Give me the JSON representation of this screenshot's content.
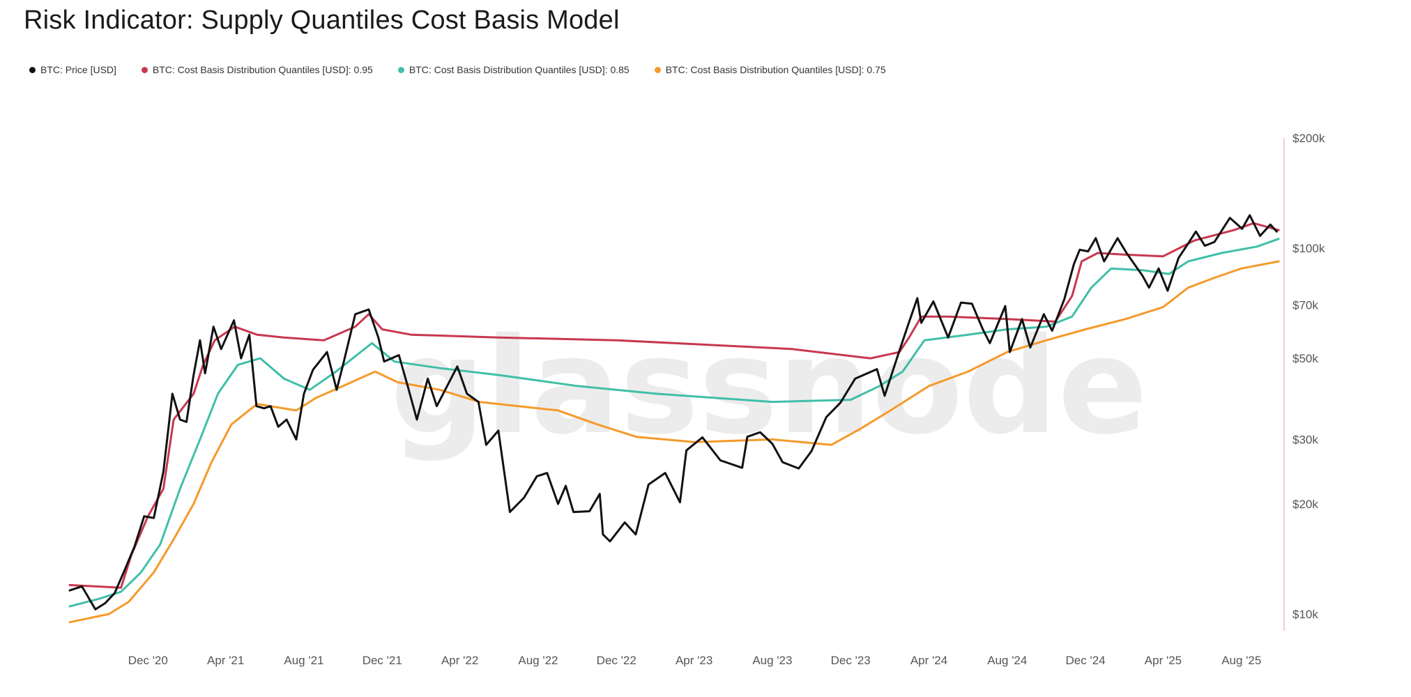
{
  "title": "Risk Indicator: Supply Quantiles Cost Basis Model",
  "watermark": "glassnode",
  "colors": {
    "price": "#111111",
    "q95": "#c8374f",
    "q85": "#3fbfa8",
    "q75": "#f59a2a",
    "axis": "#f2b8c2"
  },
  "legend": [
    {
      "label": "BTC: Price [USD]",
      "color": "#111111"
    },
    {
      "label": "BTC: Cost Basis Distribution Quantiles [USD]: 0.95",
      "color": "#c8374f"
    },
    {
      "label": "BTC: Cost Basis Distribution Quantiles [USD]: 0.85",
      "color": "#3fbfa8"
    },
    {
      "label": "BTC: Cost Basis Distribution Quantiles [USD]: 0.75",
      "color": "#f59a2a"
    }
  ],
  "chart_data": {
    "type": "line",
    "title": "Risk Indicator: Supply Quantiles Cost Basis Model",
    "y_scale": "log",
    "ylim": [
      9000,
      200000
    ],
    "xlim": [
      "2020-08-01",
      "2025-09-30"
    ],
    "x_ticks": [
      {
        "label": "Dec '20",
        "date": "2020-12-01"
      },
      {
        "label": "Apr '21",
        "date": "2021-04-01"
      },
      {
        "label": "Aug '21",
        "date": "2021-08-01"
      },
      {
        "label": "Dec '21",
        "date": "2021-12-01"
      },
      {
        "label": "Apr '22",
        "date": "2022-04-01"
      },
      {
        "label": "Aug '22",
        "date": "2022-08-01"
      },
      {
        "label": "Dec '22",
        "date": "2022-12-01"
      },
      {
        "label": "Apr '23",
        "date": "2023-04-01"
      },
      {
        "label": "Aug '23",
        "date": "2023-08-01"
      },
      {
        "label": "Dec '23",
        "date": "2023-12-01"
      },
      {
        "label": "Apr '24",
        "date": "2024-04-01"
      },
      {
        "label": "Aug '24",
        "date": "2024-08-01"
      },
      {
        "label": "Dec '24",
        "date": "2024-12-01"
      },
      {
        "label": "Apr '25",
        "date": "2025-04-01"
      },
      {
        "label": "Aug '25",
        "date": "2025-08-01"
      }
    ],
    "y_ticks": [
      {
        "label": "$200k",
        "value": 200000
      },
      {
        "label": "$100k",
        "value": 100000
      },
      {
        "label": "$70k",
        "value": 70000
      },
      {
        "label": "$50k",
        "value": 50000
      },
      {
        "label": "$30k",
        "value": 30000
      },
      {
        "label": "$20k",
        "value": 20000
      },
      {
        "label": "$10k",
        "value": 10000
      }
    ],
    "series": [
      {
        "name": "BTC: Price [USD]",
        "key": "price",
        "points": [
          [
            "2020-08-01",
            11600
          ],
          [
            "2020-08-20",
            11900
          ],
          [
            "2020-09-10",
            10300
          ],
          [
            "2020-09-25",
            10700
          ],
          [
            "2020-10-10",
            11400
          ],
          [
            "2020-10-25",
            13100
          ],
          [
            "2020-11-10",
            15300
          ],
          [
            "2020-11-25",
            18500
          ],
          [
            "2020-12-10",
            18300
          ],
          [
            "2020-12-25",
            24500
          ],
          [
            "2021-01-08",
            40000
          ],
          [
            "2021-01-20",
            34000
          ],
          [
            "2021-01-30",
            33500
          ],
          [
            "2021-02-10",
            45000
          ],
          [
            "2021-02-20",
            56000
          ],
          [
            "2021-02-28",
            45500
          ],
          [
            "2021-03-13",
            61000
          ],
          [
            "2021-03-25",
            53000
          ],
          [
            "2021-04-14",
            63500
          ],
          [
            "2021-04-25",
            50000
          ],
          [
            "2021-05-08",
            58000
          ],
          [
            "2021-05-19",
            37000
          ],
          [
            "2021-05-31",
            36500
          ],
          [
            "2021-06-10",
            37000
          ],
          [
            "2021-06-22",
            32500
          ],
          [
            "2021-07-05",
            34000
          ],
          [
            "2021-07-20",
            30000
          ],
          [
            "2021-08-01",
            40000
          ],
          [
            "2021-08-15",
            46500
          ],
          [
            "2021-09-06",
            52000
          ],
          [
            "2021-09-21",
            41000
          ],
          [
            "2021-10-01",
            48000
          ],
          [
            "2021-10-20",
            66000
          ],
          [
            "2021-11-10",
            68000
          ],
          [
            "2021-11-25",
            57000
          ],
          [
            "2021-12-04",
            49000
          ],
          [
            "2021-12-27",
            51000
          ],
          [
            "2022-01-10",
            41800
          ],
          [
            "2022-01-24",
            34000
          ],
          [
            "2022-02-10",
            44000
          ],
          [
            "2022-02-24",
            37000
          ],
          [
            "2022-03-28",
            47500
          ],
          [
            "2022-04-12",
            40000
          ],
          [
            "2022-04-30",
            38000
          ],
          [
            "2022-05-12",
            29000
          ],
          [
            "2022-05-31",
            31700
          ],
          [
            "2022-06-18",
            19000
          ],
          [
            "2022-07-10",
            20800
          ],
          [
            "2022-07-30",
            23800
          ],
          [
            "2022-08-15",
            24300
          ],
          [
            "2022-09-01",
            20000
          ],
          [
            "2022-09-13",
            22400
          ],
          [
            "2022-09-25",
            19000
          ],
          [
            "2022-10-20",
            19100
          ],
          [
            "2022-11-05",
            21300
          ],
          [
            "2022-11-10",
            16500
          ],
          [
            "2022-11-21",
            15800
          ],
          [
            "2022-12-14",
            17800
          ],
          [
            "2022-12-31",
            16500
          ],
          [
            "2023-01-20",
            22600
          ],
          [
            "2023-02-15",
            24300
          ],
          [
            "2023-03-10",
            20200
          ],
          [
            "2023-03-20",
            28000
          ],
          [
            "2023-04-14",
            30400
          ],
          [
            "2023-05-12",
            26300
          ],
          [
            "2023-06-15",
            25100
          ],
          [
            "2023-06-23",
            30500
          ],
          [
            "2023-07-13",
            31400
          ],
          [
            "2023-08-01",
            29200
          ],
          [
            "2023-08-17",
            26000
          ],
          [
            "2023-09-11",
            25000
          ],
          [
            "2023-10-01",
            27900
          ],
          [
            "2023-10-24",
            34500
          ],
          [
            "2023-11-15",
            37800
          ],
          [
            "2023-12-08",
            44000
          ],
          [
            "2024-01-11",
            46700
          ],
          [
            "2024-01-23",
            39500
          ],
          [
            "2024-02-14",
            51800
          ],
          [
            "2024-02-29",
            62000
          ],
          [
            "2024-03-14",
            73000
          ],
          [
            "2024-03-20",
            62500
          ],
          [
            "2024-04-08",
            71500
          ],
          [
            "2024-05-01",
            57000
          ],
          [
            "2024-05-21",
            71000
          ],
          [
            "2024-06-07",
            70500
          ],
          [
            "2024-06-24",
            60000
          ],
          [
            "2024-07-05",
            55000
          ],
          [
            "2024-07-29",
            69500
          ],
          [
            "2024-08-05",
            52000
          ],
          [
            "2024-08-24",
            64000
          ],
          [
            "2024-09-06",
            53500
          ],
          [
            "2024-09-27",
            66000
          ],
          [
            "2024-10-10",
            59500
          ],
          [
            "2024-10-29",
            72500
          ],
          [
            "2024-11-13",
            90500
          ],
          [
            "2024-11-22",
            99000
          ],
          [
            "2024-12-05",
            98000
          ],
          [
            "2024-12-17",
            106500
          ],
          [
            "2024-12-30",
            92000
          ],
          [
            "2025-01-20",
            106500
          ],
          [
            "2025-02-03",
            97000
          ],
          [
            "2025-02-28",
            84000
          ],
          [
            "2025-03-10",
            78000
          ],
          [
            "2025-03-25",
            88000
          ],
          [
            "2025-04-08",
            76500
          ],
          [
            "2025-04-25",
            94000
          ],
          [
            "2025-05-10",
            103000
          ],
          [
            "2025-05-22",
            111000
          ],
          [
            "2025-06-05",
            101500
          ],
          [
            "2025-06-20",
            104000
          ],
          [
            "2025-07-14",
            121000
          ],
          [
            "2025-08-02",
            113000
          ],
          [
            "2025-08-14",
            123000
          ],
          [
            "2025-08-30",
            108000
          ],
          [
            "2025-09-15",
            116000
          ],
          [
            "2025-09-25",
            111000
          ]
        ]
      },
      {
        "name": "BTC: Cost Basis Distribution Quantiles [USD]: 0.95",
        "key": "q95",
        "points": [
          [
            "2020-08-01",
            12000
          ],
          [
            "2020-10-20",
            11800
          ],
          [
            "2020-11-05",
            14500
          ],
          [
            "2020-12-01",
            18500
          ],
          [
            "2020-12-25",
            22000
          ],
          [
            "2021-01-10",
            34000
          ],
          [
            "2021-02-10",
            40000
          ],
          [
            "2021-02-25",
            48000
          ],
          [
            "2021-03-15",
            56000
          ],
          [
            "2021-04-15",
            61000
          ],
          [
            "2021-05-20",
            58000
          ],
          [
            "2021-07-01",
            57000
          ],
          [
            "2021-09-01",
            56000
          ],
          [
            "2021-10-20",
            61000
          ],
          [
            "2021-11-10",
            66000
          ],
          [
            "2021-12-01",
            60000
          ],
          [
            "2022-01-15",
            58000
          ],
          [
            "2022-06-01",
            57000
          ],
          [
            "2022-12-01",
            56000
          ],
          [
            "2023-06-01",
            54000
          ],
          [
            "2023-09-01",
            53000
          ],
          [
            "2024-01-01",
            50000
          ],
          [
            "2024-02-15",
            52000
          ],
          [
            "2024-03-01",
            57000
          ],
          [
            "2024-03-20",
            65000
          ],
          [
            "2024-05-01",
            65000
          ],
          [
            "2024-08-01",
            64000
          ],
          [
            "2024-10-15",
            63000
          ],
          [
            "2024-11-10",
            74000
          ],
          [
            "2024-11-25",
            92000
          ],
          [
            "2024-12-20",
            97000
          ],
          [
            "2025-01-30",
            96000
          ],
          [
            "2025-04-01",
            95000
          ],
          [
            "2025-05-20",
            105000
          ],
          [
            "2025-07-20",
            112000
          ],
          [
            "2025-08-20",
            117000
          ],
          [
            "2025-09-28",
            112000
          ]
        ]
      },
      {
        "name": "BTC: Cost Basis Distribution Quantiles [USD]: 0.85",
        "key": "q85",
        "points": [
          [
            "2020-08-01",
            10500
          ],
          [
            "2020-09-15",
            11000
          ],
          [
            "2020-10-20",
            11500
          ],
          [
            "2020-11-20",
            13000
          ],
          [
            "2020-12-20",
            15500
          ],
          [
            "2021-01-20",
            22000
          ],
          [
            "2021-02-20",
            30000
          ],
          [
            "2021-03-20",
            40000
          ],
          [
            "2021-04-20",
            48000
          ],
          [
            "2021-05-25",
            50000
          ],
          [
            "2021-07-01",
            44000
          ],
          [
            "2021-08-10",
            41000
          ],
          [
            "2021-09-20",
            46000
          ],
          [
            "2021-11-15",
            55000
          ],
          [
            "2021-12-20",
            49000
          ],
          [
            "2022-03-01",
            47000
          ],
          [
            "2022-06-01",
            45000
          ],
          [
            "2022-10-01",
            42000
          ],
          [
            "2023-02-01",
            40000
          ],
          [
            "2023-08-01",
            38000
          ],
          [
            "2023-12-01",
            38500
          ],
          [
            "2024-01-15",
            42000
          ],
          [
            "2024-02-20",
            46000
          ],
          [
            "2024-03-25",
            56000
          ],
          [
            "2024-06-01",
            58000
          ],
          [
            "2024-08-01",
            60000
          ],
          [
            "2024-10-01",
            61000
          ],
          [
            "2024-11-10",
            65000
          ],
          [
            "2024-12-10",
            78000
          ],
          [
            "2025-01-10",
            88000
          ],
          [
            "2025-03-01",
            87000
          ],
          [
            "2025-04-10",
            85000
          ],
          [
            "2025-05-10",
            92000
          ],
          [
            "2025-07-01",
            97000
          ],
          [
            "2025-08-25",
            101000
          ],
          [
            "2025-09-28",
            106000
          ]
        ]
      },
      {
        "name": "BTC: Cost Basis Distribution Quantiles [USD]: 0.75",
        "key": "q75",
        "points": [
          [
            "2020-08-01",
            9500
          ],
          [
            "2020-10-01",
            10000
          ],
          [
            "2020-11-01",
            10800
          ],
          [
            "2020-12-10",
            13000
          ],
          [
            "2021-01-10",
            16000
          ],
          [
            "2021-02-10",
            20000
          ],
          [
            "2021-03-10",
            26000
          ],
          [
            "2021-04-10",
            33000
          ],
          [
            "2021-05-20",
            37500
          ],
          [
            "2021-07-20",
            36000
          ],
          [
            "2021-08-20",
            39000
          ],
          [
            "2021-10-01",
            42000
          ],
          [
            "2021-11-20",
            46000
          ],
          [
            "2021-12-25",
            43000
          ],
          [
            "2022-03-01",
            41000
          ],
          [
            "2022-05-01",
            38000
          ],
          [
            "2022-09-01",
            36000
          ],
          [
            "2022-11-01",
            33000
          ],
          [
            "2023-01-01",
            30500
          ],
          [
            "2023-04-01",
            29500
          ],
          [
            "2023-08-01",
            30000
          ],
          [
            "2023-11-01",
            29000
          ],
          [
            "2023-12-15",
            32000
          ],
          [
            "2024-02-01",
            36000
          ],
          [
            "2024-04-01",
            42000
          ],
          [
            "2024-06-01",
            46000
          ],
          [
            "2024-08-01",
            52000
          ],
          [
            "2024-10-01",
            56000
          ],
          [
            "2024-12-01",
            60000
          ],
          [
            "2025-02-01",
            64000
          ],
          [
            "2025-04-01",
            69000
          ],
          [
            "2025-05-10",
            78000
          ],
          [
            "2025-06-20",
            83000
          ],
          [
            "2025-08-01",
            88000
          ],
          [
            "2025-09-28",
            92000
          ]
        ]
      }
    ]
  }
}
